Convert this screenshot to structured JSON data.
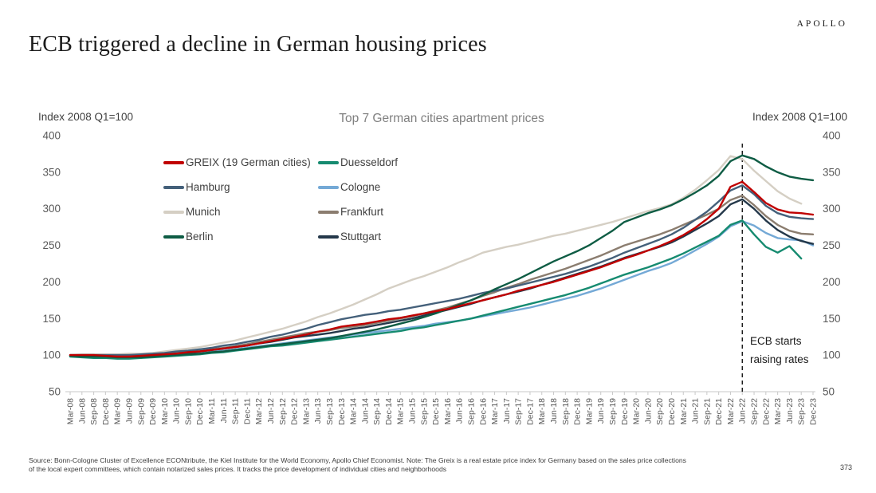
{
  "header": {
    "brand": "APOLLO",
    "title": "ECB triggered a decline in German housing prices"
  },
  "chart": {
    "title": "Top 7 German cities apartment prices",
    "left_axis_label": "Index 2008 Q1=100",
    "right_axis_label": "Index 2008 Q1=100",
    "annotation": {
      "lines": [
        "ECB starts",
        "raising rates"
      ],
      "at_category": "Jun-22"
    }
  },
  "chart_data": {
    "type": "line",
    "title": "Top 7 German cities apartment prices",
    "xlabel": "",
    "ylabel": "Index 2008 Q1=100",
    "ylim": [
      50,
      400
    ],
    "yticks": [
      400,
      350,
      300,
      250,
      200,
      150,
      100,
      50
    ],
    "grid": false,
    "legend_position": "top-left-two-columns",
    "event_line": {
      "category": "Jun-22",
      "style": "dashed-black-vertical"
    },
    "categories": [
      "Mar-08",
      "Jun-08",
      "Sep-08",
      "Dec-08",
      "Mar-09",
      "Jun-09",
      "Sep-09",
      "Dec-09",
      "Mar-10",
      "Jun-10",
      "Sep-10",
      "Dec-10",
      "Mar-11",
      "Jun-11",
      "Sep-11",
      "Dec-11",
      "Mar-12",
      "Jun-12",
      "Sep-12",
      "Dec-12",
      "Mar-13",
      "Jun-13",
      "Sep-13",
      "Dec-13",
      "Mar-14",
      "Jun-14",
      "Sep-14",
      "Dec-14",
      "Mar-15",
      "Jun-15",
      "Sep-15",
      "Dec-15",
      "Mar-16",
      "Jun-16",
      "Sep-16",
      "Dec-16",
      "Mar-17",
      "Jun-17",
      "Sep-17",
      "Dec-17",
      "Mar-18",
      "Jun-18",
      "Sep-18",
      "Dec-18",
      "Mar-19",
      "Jun-19",
      "Sep-19",
      "Dec-19",
      "Mar-20",
      "Jun-20",
      "Sep-20",
      "Dec-20",
      "Mar-21",
      "Jun-21",
      "Sep-21",
      "Dec-21",
      "Mar-22",
      "Jun-22",
      "Sep-22",
      "Dec-22",
      "Mar-23",
      "Jun-23",
      "Sep-23",
      "Dec-23"
    ],
    "draw_order": [
      "Munich",
      "Cologne",
      "Frankfurt",
      "Stuttgart",
      "Duesseldorf",
      "Hamburg",
      "Berlin",
      "GREIX (19 German cities)"
    ],
    "series": [
      {
        "name": "GREIX (19 German cities)",
        "color": "#c00000",
        "values": [
          100,
          100,
          100,
          99,
          98,
          98,
          99,
          100,
          101,
          102,
          104,
          105,
          107,
          109,
          111,
          113,
          116,
          119,
          122,
          125,
          128,
          132,
          135,
          139,
          141,
          143,
          146,
          149,
          151,
          154,
          157,
          160,
          163,
          167,
          171,
          175,
          179,
          183,
          188,
          192,
          196,
          200,
          205,
          210,
          215,
          220,
          226,
          232,
          237,
          243,
          249,
          256,
          264,
          274,
          286,
          300,
          330,
          337,
          323,
          308,
          299,
          295,
          294,
          292
        ]
      },
      {
        "name": "Hamburg",
        "color": "#44607a",
        "values": [
          100,
          100,
          100,
          100,
          100,
          100,
          101,
          102,
          103,
          105,
          106,
          108,
          110,
          113,
          115,
          118,
          121,
          125,
          128,
          132,
          136,
          141,
          145,
          149,
          152,
          155,
          157,
          160,
          162,
          165,
          168,
          171,
          174,
          177,
          181,
          185,
          188,
          191,
          195,
          199,
          203,
          207,
          211,
          216,
          221,
          227,
          233,
          240,
          246,
          252,
          258,
          265,
          274,
          285,
          296,
          310,
          325,
          332,
          320,
          304,
          294,
          289,
          287,
          286
        ]
      },
      {
        "name": "Munich",
        "color": "#d5cfc4",
        "values": [
          100,
          101,
          101,
          101,
          101,
          102,
          102,
          103,
          105,
          107,
          109,
          111,
          114,
          117,
          120,
          124,
          128,
          132,
          136,
          141,
          146,
          152,
          157,
          163,
          169,
          176,
          183,
          191,
          197,
          203,
          208,
          214,
          220,
          227,
          233,
          240,
          244,
          248,
          251,
          255,
          259,
          263,
          266,
          270,
          274,
          278,
          282,
          287,
          292,
          297,
          301,
          306,
          315,
          326,
          339,
          353,
          372,
          368,
          352,
          338,
          324,
          314,
          307,
          null
        ]
      },
      {
        "name": "Berlin",
        "color": "#0e5c44",
        "values": [
          99,
          98,
          98,
          98,
          97,
          97,
          97,
          98,
          99,
          100,
          101,
          102,
          104,
          105,
          107,
          109,
          111,
          113,
          115,
          117,
          119,
          121,
          123,
          126,
          129,
          132,
          135,
          139,
          143,
          147,
          152,
          157,
          163,
          169,
          175,
          182,
          190,
          197,
          204,
          212,
          220,
          228,
          235,
          242,
          250,
          260,
          270,
          282,
          288,
          294,
          299,
          305,
          313,
          322,
          332,
          345,
          365,
          373,
          368,
          358,
          350,
          344,
          341,
          339
        ]
      },
      {
        "name": "Duesseldorf",
        "color": "#168b70",
        "values": [
          98,
          97,
          96,
          96,
          95,
          95,
          96,
          97,
          98,
          99,
          100,
          101,
          103,
          104,
          106,
          108,
          110,
          112,
          113,
          115,
          117,
          119,
          121,
          123,
          125,
          127,
          129,
          131,
          133,
          136,
          138,
          141,
          144,
          147,
          150,
          154,
          158,
          162,
          166,
          170,
          174,
          178,
          182,
          187,
          192,
          198,
          204,
          210,
          215,
          220,
          226,
          232,
          239,
          247,
          255,
          263,
          278,
          284,
          265,
          248,
          240,
          249,
          232,
          null
        ]
      },
      {
        "name": "Cologne",
        "color": "#74a9d6",
        "values": [
          99,
          99,
          99,
          99,
          98,
          98,
          99,
          99,
          100,
          101,
          102,
          103,
          105,
          106,
          108,
          110,
          112,
          114,
          116,
          118,
          120,
          122,
          124,
          126,
          128,
          130,
          132,
          134,
          136,
          138,
          140,
          143,
          145,
          147,
          150,
          153,
          156,
          159,
          162,
          165,
          169,
          173,
          177,
          181,
          186,
          191,
          197,
          203,
          209,
          215,
          220,
          226,
          234,
          243,
          252,
          262,
          276,
          283,
          277,
          267,
          260,
          258,
          257,
          250
        ]
      },
      {
        "name": "Frankfurt",
        "color": "#8b7d6f",
        "values": [
          100,
          100,
          100,
          100,
          100,
          100,
          100,
          101,
          102,
          103,
          104,
          106,
          108,
          110,
          112,
          115,
          118,
          121,
          124,
          127,
          130,
          132,
          134,
          137,
          139,
          141,
          144,
          147,
          150,
          153,
          157,
          161,
          165,
          170,
          175,
          181,
          186,
          192,
          197,
          203,
          208,
          213,
          218,
          224,
          230,
          236,
          243,
          250,
          255,
          260,
          265,
          271,
          278,
          285,
          292,
          300,
          312,
          318,
          305,
          290,
          278,
          270,
          266,
          265
        ]
      },
      {
        "name": "Stuttgart",
        "color": "#24384a",
        "values": [
          99,
          99,
          99,
          99,
          98,
          98,
          99,
          100,
          101,
          102,
          103,
          105,
          107,
          109,
          111,
          113,
          116,
          118,
          121,
          124,
          126,
          128,
          130,
          133,
          136,
          138,
          141,
          144,
          147,
          150,
          154,
          158,
          162,
          166,
          170,
          175,
          179,
          183,
          187,
          191,
          196,
          201,
          206,
          211,
          216,
          221,
          227,
          233,
          238,
          243,
          248,
          254,
          262,
          271,
          280,
          290,
          306,
          313,
          300,
          284,
          271,
          262,
          256,
          252
        ]
      }
    ]
  },
  "footer": {
    "source_lines": [
      "Source: Bonn-Cologne Cluster of Excellence ECONtribute, the Kiel Institute for the World Economy, Apollo Chief Economist. Note: The Greix is a real estate price index for Germany based on the sales price collections",
      "of the local expert committees, which contain notarized sales prices. It tracks the price development of individual cities and neighborhoods"
    ],
    "page_number": "373"
  }
}
